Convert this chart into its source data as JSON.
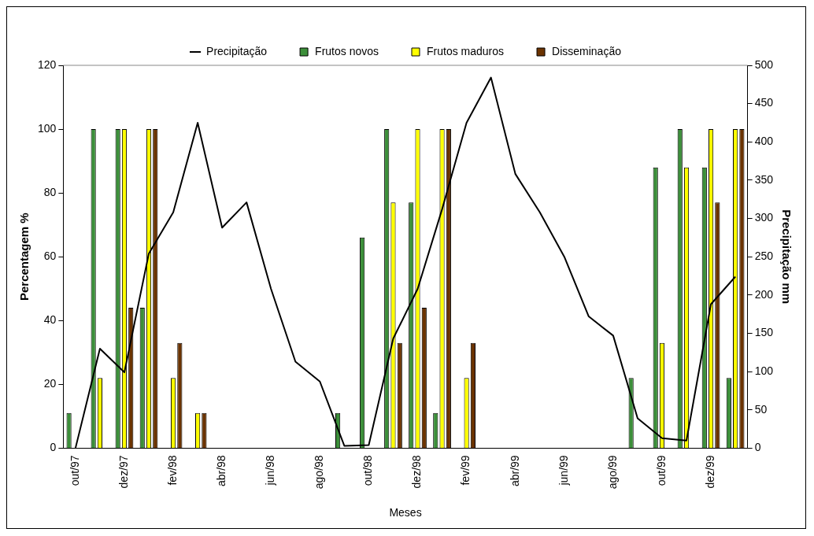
{
  "chart_data": {
    "type": "bar",
    "categories": [
      "out/97",
      null,
      "dez/97",
      null,
      "fev/98",
      null,
      "abr/98",
      null,
      "jun/98",
      null,
      "ago/98",
      null,
      "out/98",
      null,
      "dez/98",
      null,
      "fev/99",
      null,
      "abr/99",
      null,
      "jun/99",
      null,
      "ago/99",
      null,
      "out/99",
      null,
      "dez/99",
      null
    ],
    "series": [
      {
        "name": "Frutos novos",
        "color": "#3c8f3a",
        "values": [
          11,
          100,
          100,
          44,
          0,
          0,
          0,
          0,
          0,
          0,
          0,
          11,
          66,
          100,
          77,
          11,
          0,
          0,
          0,
          0,
          0,
          0,
          0,
          22,
          88,
          100,
          88,
          22
        ]
      },
      {
        "name": "Frutos maduros",
        "color": "#ffff00",
        "values": [
          0,
          22,
          100,
          100,
          22,
          11,
          0,
          0,
          0,
          0,
          0,
          0,
          0,
          77,
          100,
          100,
          22,
          0,
          0,
          0,
          0,
          0,
          0,
          0,
          33,
          88,
          100,
          100
        ]
      },
      {
        "name": "Disseminação",
        "color": "#6b3300",
        "values": [
          0,
          0,
          44,
          100,
          33,
          11,
          0,
          0,
          0,
          0,
          0,
          0,
          0,
          33,
          44,
          100,
          33,
          0,
          0,
          0,
          0,
          0,
          0,
          0,
          0,
          0,
          77,
          100
        ]
      },
      {
        "name": "Precipitação",
        "type": "line",
        "axis": "y2",
        "color": "#000000",
        "values": [
          0,
          130,
          99,
          254,
          308,
          425,
          288,
          321,
          208,
          113,
          87,
          3,
          4,
          143,
          208,
          312,
          425,
          484,
          358,
          308,
          250,
          172,
          147,
          39,
          13,
          10,
          188,
          224
        ]
      }
    ],
    "xlabel": "Meses",
    "ylabel": "Percentagem %",
    "y2label": "Precipitação mm",
    "ylim": [
      0,
      120
    ],
    "yticks": [
      0,
      20,
      40,
      60,
      80,
      100,
      120
    ],
    "y2lim": [
      0,
      500
    ],
    "y2ticks": [
      0,
      50,
      100,
      150,
      200,
      250,
      300,
      350,
      400,
      450,
      500
    ],
    "legend": "top",
    "grid": false,
    "marker": "none"
  }
}
